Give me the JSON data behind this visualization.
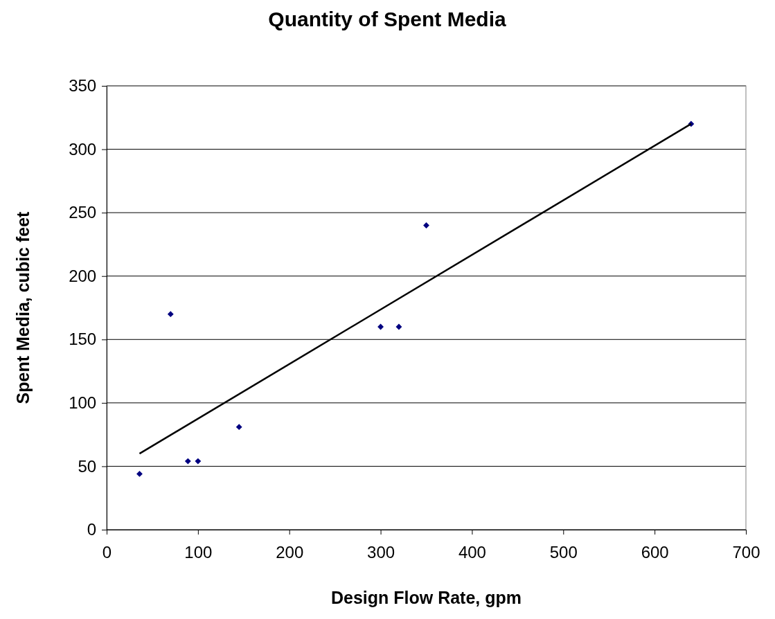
{
  "chart_data": {
    "type": "scatter",
    "title": "Quantity of Spent Media",
    "xlabel": "Design Flow Rate, gpm",
    "ylabel": "Spent Media, cubic feet",
    "xlim": [
      0,
      700
    ],
    "xticks": [
      0,
      100,
      200,
      300,
      400,
      500,
      600,
      700
    ],
    "ylim": [
      0,
      350
    ],
    "yticks": [
      0,
      50,
      100,
      150,
      200,
      250,
      300,
      350
    ],
    "grid": "y",
    "marker": "diamond",
    "series": [
      {
        "color": "#000080",
        "x": [
          36,
          70,
          89,
          100,
          145,
          300,
          320,
          350,
          640
        ],
        "values": [
          44,
          170,
          54,
          54,
          81,
          160,
          160,
          240,
          320
        ]
      },
      {
        "type": "line",
        "color": "#000000",
        "line_style": "solid",
        "marker": "none",
        "x": [
          36,
          640
        ],
        "values": [
          60,
          320
        ]
      }
    ]
  }
}
